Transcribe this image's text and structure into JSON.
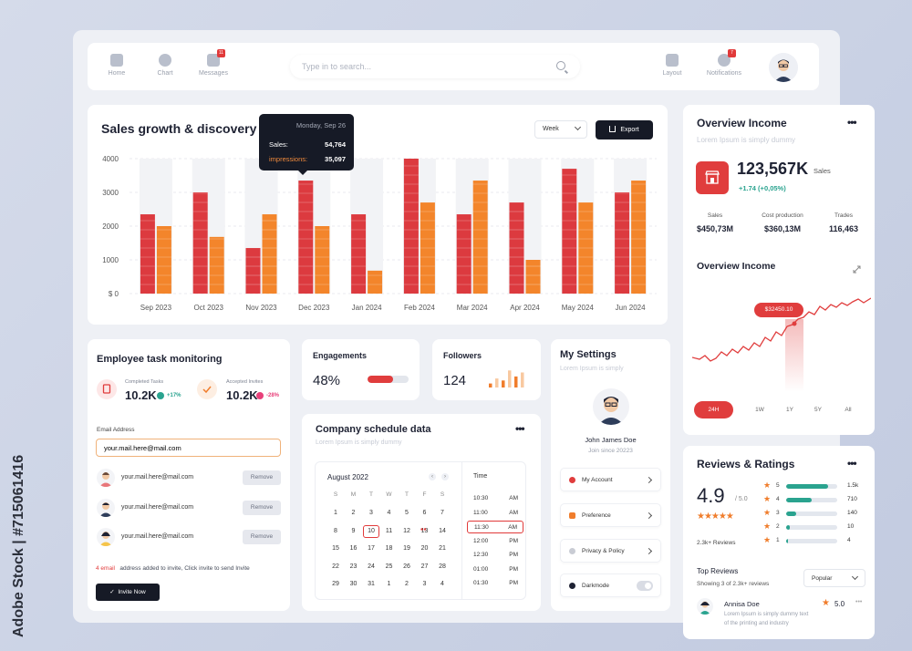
{
  "watermark": "Adobe Stock | #715061416",
  "nav": {
    "items": [
      {
        "label": "Home",
        "icon": "home-icon"
      },
      {
        "label": "Chart",
        "icon": "chart-icon"
      },
      {
        "label": "Messages",
        "icon": "messages-icon",
        "badge": "11"
      }
    ],
    "right_items": [
      {
        "label": "Layout",
        "icon": "layout-icon"
      },
      {
        "label": "Notifications",
        "icon": "bell-icon",
        "badge": "7"
      }
    ],
    "search_placeholder": "Type in to search..."
  },
  "sales": {
    "title": "Sales growth & discovery",
    "period": "Week",
    "export_label": "Export",
    "tooltip": {
      "date": "Monday, Sep 26",
      "sales_label": "Sales:",
      "sales_value": "54,764",
      "impressions_label": "impressions:",
      "impressions_value": "35,097"
    }
  },
  "chart_data": {
    "type": "bar",
    "categories": [
      "Sep 2023",
      "Oct 2023",
      "Nov 2023",
      "Dec 2023",
      "Jan 2024",
      "Feb 2024",
      "Mar 2024",
      "Apr 2024",
      "May 2024",
      "Jun 2024"
    ],
    "series": [
      {
        "values": [
          2350,
          3000,
          1350,
          3350,
          2350,
          4000,
          2350,
          2700,
          3700,
          3000
        ],
        "color": "#dc3a3f"
      },
      {
        "values": [
          2000,
          1680,
          2350,
          2000,
          680,
          2700,
          3350,
          1000,
          2700,
          3350
        ],
        "color": "#f3852b"
      }
    ],
    "yticks": [
      "4000",
      "3000",
      "2000",
      "1000",
      "$ 0"
    ],
    "ylim": [
      0,
      4000
    ],
    "grid": true,
    "highlight_index": 3
  },
  "employee": {
    "title": "Employee task monitoring",
    "completed_label": "Completed Tasks",
    "completed_value": "10.2K",
    "completed_pct": "+17%",
    "accepted_label": "Accepted Invites",
    "accepted_value": "10.2K",
    "accepted_pct": "-28%",
    "email_label": "Email Address",
    "email_value": "your.mail.here@mail.com",
    "invites": [
      {
        "email": "your.mail.here@mail.com",
        "action": "Remove"
      },
      {
        "email": "your.mail.here@mail.com",
        "action": "Remove"
      },
      {
        "email": "your.mail.here@mail.com",
        "action": "Remove"
      }
    ],
    "note_count": "4 email",
    "note_text": "address added to invite, Click invite to send Invite",
    "invite_btn": "Invite Now"
  },
  "engagements": {
    "title": "Engagements",
    "value": "48%",
    "progress": 0.62
  },
  "followers": {
    "title": "Followers",
    "value": "124",
    "bars": [
      0.2,
      0.45,
      0.35,
      0.85,
      0.55,
      0.75
    ]
  },
  "schedule": {
    "title": "Company schedule data",
    "subtitle": "Lorem Ipsum is simply dummy",
    "month": "August 2022",
    "weekdays": [
      "S",
      "M",
      "T",
      "W",
      "T",
      "F",
      "S"
    ],
    "weeks": [
      [
        "1",
        "2",
        "3",
        "4",
        "5",
        "6",
        "7"
      ],
      [
        "8",
        "9",
        "10",
        "11",
        "12",
        "13",
        "14"
      ],
      [
        "15",
        "16",
        "17",
        "18",
        "19",
        "20",
        "21"
      ],
      [
        "22",
        "23",
        "24",
        "25",
        "26",
        "27",
        "28"
      ],
      [
        "29",
        "30",
        "31",
        "1",
        "2",
        "3",
        "4"
      ]
    ],
    "selected_day": "10",
    "time_header": "Time",
    "times": [
      {
        "t": "10:30",
        "ap": "AM"
      },
      {
        "t": "11:00",
        "ap": "AM"
      },
      {
        "t": "11:30",
        "ap": "AM"
      },
      {
        "t": "12:00",
        "ap": "PM"
      },
      {
        "t": "12:30",
        "ap": "PM"
      },
      {
        "t": "01:00",
        "ap": "PM"
      },
      {
        "t": "01:30",
        "ap": "PM"
      }
    ],
    "selected_time_index": 2
  },
  "settings": {
    "title": "My Settings",
    "subtitle": "Lorem Ipsum is simply",
    "name": "John James Doe",
    "joined": "Join since 20223",
    "items": [
      {
        "label": "My Account",
        "icon": "user-icon",
        "color": "#e03d3d"
      },
      {
        "label": "Preference",
        "icon": "preference-icon",
        "color": "#f07d2c"
      },
      {
        "label": "Privacy & Policy",
        "icon": "privacy-icon",
        "color": "#c9ccd4"
      },
      {
        "label": "Darkmode",
        "icon": "moon-icon",
        "color": "#1e2233"
      }
    ]
  },
  "overview": {
    "title": "Overview Income",
    "subtitle": "Lorem Ipsum is simply dummy",
    "value": "123,567K",
    "value_unit": "Sales",
    "change": "+1.74 (+0,05%)",
    "metrics": [
      {
        "label": "Sales",
        "value": "$450,73M"
      },
      {
        "label": "Cost production",
        "value": "$360,13M"
      },
      {
        "label": "Trades",
        "value": "116,463"
      }
    ],
    "chart_title": "Overview Income",
    "price_tag": "$32450.10",
    "periods": [
      "24H",
      "1W",
      "1Y",
      "5Y",
      "All"
    ],
    "active_period": "24H"
  },
  "reviews": {
    "title": "Reviews & Ratings",
    "score": "4.9",
    "score_max": "/ 5.0",
    "count": "2.3k+ Reviews",
    "rows": [
      {
        "stars": "5",
        "fill": 0.82,
        "count": "1.5k"
      },
      {
        "stars": "4",
        "fill": 0.5,
        "count": "710"
      },
      {
        "stars": "3",
        "fill": 0.2,
        "count": "140"
      },
      {
        "stars": "2",
        "fill": 0.07,
        "count": "10"
      },
      {
        "stars": "1",
        "fill": 0.03,
        "count": "4"
      }
    ],
    "top_title": "Top Reviews",
    "top_sub": "Showing 3 of 2.3k+ reviews",
    "sort": "Popular",
    "reviewer": "Annisa Doe",
    "reviewer_score": "5.0",
    "review_text_1": "Lorem Ipsum is simply dummy text",
    "review_text_2": "of the printing and industry"
  },
  "colors": {
    "red": "#e03d3d",
    "orange": "#f3852b",
    "dark": "#161a26",
    "teal": "#2aa38f"
  }
}
